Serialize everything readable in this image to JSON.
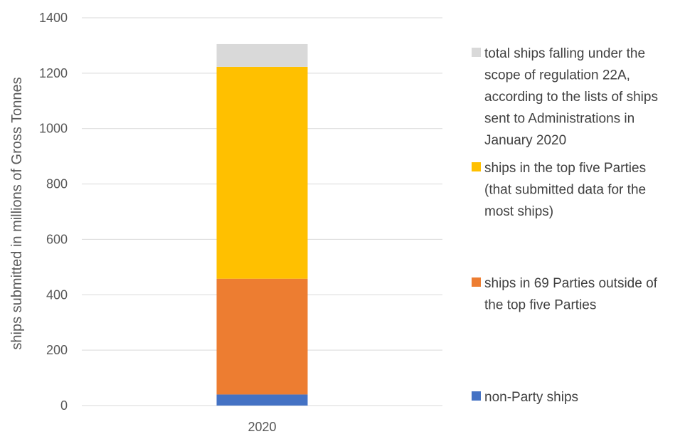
{
  "chart_data": {
    "type": "bar",
    "stacked": true,
    "categories": [
      "2020"
    ],
    "ylabel": "ships submitted in millions of Gross Tonnes",
    "xlabel": "",
    "ylim": [
      0,
      1400
    ],
    "yticks": [
      0,
      200,
      400,
      600,
      800,
      1000,
      1200,
      1400
    ],
    "grid": true,
    "legend_position": "right",
    "series": [
      {
        "name": "non-Party ships",
        "values": [
          40
        ],
        "color": "#4472C4",
        "legend_lines": [
          "non-Party ships"
        ]
      },
      {
        "name": "ships in 69 Parties outside of the top five Parties",
        "values": [
          418
        ],
        "color": "#ED7D31",
        "legend_lines": [
          "ships in 69 Parties outside of",
          "the top five Parties"
        ]
      },
      {
        "name": "ships in the top five Parties (that submitted data for the most ships)",
        "values": [
          765
        ],
        "color": "#FFC000",
        "legend_lines": [
          "ships in the top five Parties",
          "(that submitted data for the",
          "most ships)"
        ]
      },
      {
        "name": "total ships falling under the scope of regulation 22A, according to the lists of ships sent to Administrations in January 2020",
        "values": [
          82
        ],
        "color": "#D9D9D9",
        "legend_lines": [
          "total ships falling under the",
          "scope of regulation 22A,",
          "according to the lists of ships",
          "sent to Administrations in",
          "January 2020"
        ]
      }
    ]
  }
}
